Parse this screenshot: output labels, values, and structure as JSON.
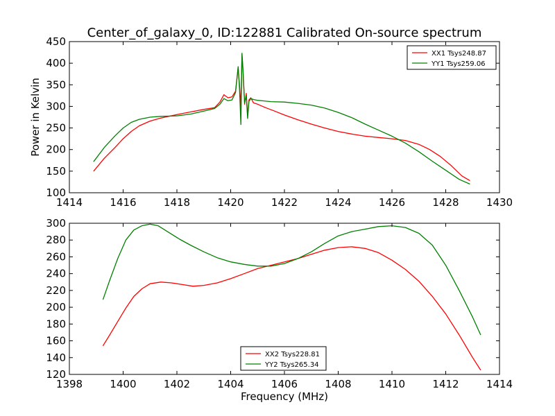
{
  "figure": {
    "title": "Center_of_galaxy_0, ID:122881 Calibrated On-source spectrum",
    "xlabel": "Frequency (MHz)"
  },
  "chart_data": [
    {
      "type": "line",
      "title": "Center_of_galaxy_0, ID:122881 Calibrated On-source spectrum",
      "xlabel": "",
      "ylabel": "Power in Kelvin",
      "xlim": [
        1414,
        1430
      ],
      "ylim": [
        100,
        450
      ],
      "xticks": [
        "1414",
        "1416",
        "1418",
        "1420",
        "1422",
        "1424",
        "1426",
        "1428",
        "1430"
      ],
      "yticks": [
        "100",
        "150",
        "200",
        "250",
        "300",
        "350",
        "400",
        "450"
      ],
      "grid": false,
      "legend_position": "top-right",
      "series": [
        {
          "name": "XX1 Tsys248.87",
          "color": "#ff0000",
          "x": [
            1414.9,
            1415.3,
            1415.7,
            1416.0,
            1416.3,
            1416.6,
            1417.0,
            1417.4,
            1418.0,
            1418.5,
            1419.0,
            1419.4,
            1419.6,
            1419.75,
            1419.9,
            1420.05,
            1420.18,
            1420.28,
            1420.33,
            1420.38,
            1420.42,
            1420.46,
            1420.52,
            1420.58,
            1420.63,
            1420.68,
            1420.75,
            1420.85,
            1421.0,
            1421.3,
            1421.6,
            1422.0,
            1422.5,
            1423.0,
            1423.5,
            1424.0,
            1424.5,
            1425.0,
            1425.5,
            1426.0,
            1426.5,
            1427.0,
            1427.4,
            1427.8,
            1428.2,
            1428.6,
            1428.9
          ],
          "y": [
            150,
            180,
            205,
            225,
            242,
            255,
            266,
            273,
            281,
            287,
            293,
            297,
            310,
            327,
            320,
            322,
            335,
            390,
            348,
            300,
            420,
            380,
            305,
            330,
            278,
            315,
            320,
            308,
            305,
            297,
            290,
            280,
            269,
            259,
            250,
            242,
            236,
            231,
            228,
            225,
            221,
            212,
            200,
            184,
            163,
            139,
            128
          ]
        },
        {
          "name": "YY1 Tsys259.06",
          "color": "#008000",
          "x": [
            1414.9,
            1415.3,
            1415.7,
            1416.0,
            1416.3,
            1416.6,
            1417.0,
            1417.4,
            1418.0,
            1418.5,
            1419.0,
            1419.4,
            1419.6,
            1419.75,
            1419.9,
            1420.05,
            1420.18,
            1420.28,
            1420.33,
            1420.38,
            1420.42,
            1420.46,
            1420.52,
            1420.58,
            1420.63,
            1420.68,
            1420.75,
            1420.85,
            1421.0,
            1421.5,
            1422.0,
            1422.5,
            1423.0,
            1423.5,
            1424.0,
            1424.5,
            1425.0,
            1425.5,
            1426.0,
            1426.5,
            1427.0,
            1427.5,
            1428.0,
            1428.5,
            1428.9
          ],
          "y": [
            172,
            205,
            232,
            250,
            263,
            270,
            275,
            277,
            278,
            282,
            289,
            295,
            305,
            318,
            313,
            315,
            332,
            392,
            338,
            258,
            423,
            385,
            308,
            325,
            272,
            312,
            318,
            316,
            314,
            311,
            310,
            307,
            303,
            296,
            286,
            274,
            259,
            245,
            231,
            215,
            195,
            173,
            152,
            131,
            120
          ]
        }
      ]
    },
    {
      "type": "line",
      "title": "",
      "xlabel": "Frequency (MHz)",
      "ylabel": "",
      "xlim": [
        1398,
        1414
      ],
      "ylim": [
        120,
        300
      ],
      "xticks": [
        "1398",
        "1400",
        "1402",
        "1404",
        "1406",
        "1408",
        "1410",
        "1412",
        "1414"
      ],
      "yticks": [
        "120",
        "140",
        "160",
        "180",
        "200",
        "220",
        "240",
        "260",
        "280",
        "300"
      ],
      "grid": false,
      "legend_position": "bottom-center",
      "series": [
        {
          "name": "XX2 Tsys228.81",
          "color": "#ff0000",
          "x": [
            1399.25,
            1399.5,
            1399.8,
            1400.1,
            1400.4,
            1400.7,
            1401.0,
            1401.4,
            1401.8,
            1402.2,
            1402.6,
            1403.0,
            1403.5,
            1404.0,
            1404.5,
            1405.0,
            1405.5,
            1406.0,
            1406.5,
            1407.0,
            1407.5,
            1408.0,
            1408.5,
            1409.0,
            1409.5,
            1410.0,
            1410.5,
            1411.0,
            1411.5,
            1412.0,
            1412.5,
            1413.0,
            1413.3
          ],
          "y": [
            154,
            167,
            183,
            199,
            213,
            222,
            228,
            230,
            229,
            227,
            225,
            226,
            229,
            234,
            240,
            246,
            250,
            254,
            258,
            263,
            268,
            271,
            272,
            270,
            265,
            256,
            245,
            231,
            213,
            192,
            167,
            140,
            125
          ]
        },
        {
          "name": "YY2 Tsys265.34",
          "color": "#008000",
          "x": [
            1399.25,
            1399.5,
            1399.8,
            1400.1,
            1400.4,
            1400.7,
            1401.0,
            1401.3,
            1401.7,
            1402.1,
            1402.5,
            1403.0,
            1403.5,
            1404.0,
            1404.5,
            1405.0,
            1405.5,
            1406.0,
            1406.5,
            1407.0,
            1407.5,
            1408.0,
            1408.5,
            1409.0,
            1409.5,
            1410.0,
            1410.5,
            1411.0,
            1411.5,
            1412.0,
            1412.5,
            1413.0,
            1413.3
          ],
          "y": [
            209,
            232,
            258,
            280,
            292,
            297,
            299,
            297,
            289,
            281,
            274,
            266,
            259,
            254,
            251,
            249,
            249,
            252,
            258,
            266,
            276,
            285,
            290,
            293,
            296,
            297,
            295,
            288,
            274,
            250,
            220,
            188,
            167
          ]
        }
      ]
    }
  ]
}
